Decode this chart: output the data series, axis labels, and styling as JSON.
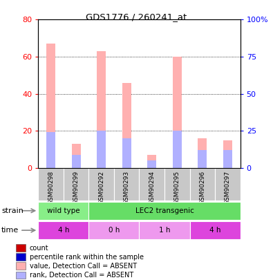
{
  "title": "GDS1776 / 260241_at",
  "samples": [
    "GSM90298",
    "GSM90299",
    "GSM90292",
    "GSM90293",
    "GSM90294",
    "GSM90295",
    "GSM90296",
    "GSM90297"
  ],
  "absent_value": [
    67,
    13,
    63,
    46,
    7,
    60,
    16,
    15
  ],
  "absent_rank": [
    24,
    9,
    25,
    20,
    5,
    25,
    12,
    12
  ],
  "ylim_left": [
    0,
    80
  ],
  "ylim_right": [
    0,
    100
  ],
  "yticks_left": [
    0,
    20,
    40,
    60,
    80
  ],
  "yticks_right": [
    0,
    25,
    50,
    75,
    100
  ],
  "ytick_labels_right": [
    "0",
    "25",
    "50",
    "75",
    "100%"
  ],
  "strain_groups": [
    {
      "label": "wild type",
      "start": 0,
      "end": 2,
      "color": "#88ee88"
    },
    {
      "label": "LEC2 transgenic",
      "start": 2,
      "end": 8,
      "color": "#66dd66"
    }
  ],
  "time_groups": [
    {
      "label": "4 h",
      "start": 0,
      "end": 2,
      "color": "#dd44dd"
    },
    {
      "label": "0 h",
      "start": 2,
      "end": 4,
      "color": "#ee99ee"
    },
    {
      "label": "1 h",
      "start": 4,
      "end": 6,
      "color": "#ee99ee"
    },
    {
      "label": "4 h",
      "start": 6,
      "end": 8,
      "color": "#dd44dd"
    }
  ],
  "color_absent_value": "#ffb0b0",
  "color_absent_rank": "#b0b0ff",
  "bar_width": 0.35,
  "legend_items": [
    {
      "color": "#cc0000",
      "label": "count"
    },
    {
      "color": "#0000cc",
      "label": "percentile rank within the sample"
    },
    {
      "color": "#ffb0b0",
      "label": "value, Detection Call = ABSENT"
    },
    {
      "color": "#b0b0ff",
      "label": "rank, Detection Call = ABSENT"
    }
  ],
  "grid_color": "black",
  "grid_linestyle": "dotted",
  "grid_linewidth": 0.6
}
